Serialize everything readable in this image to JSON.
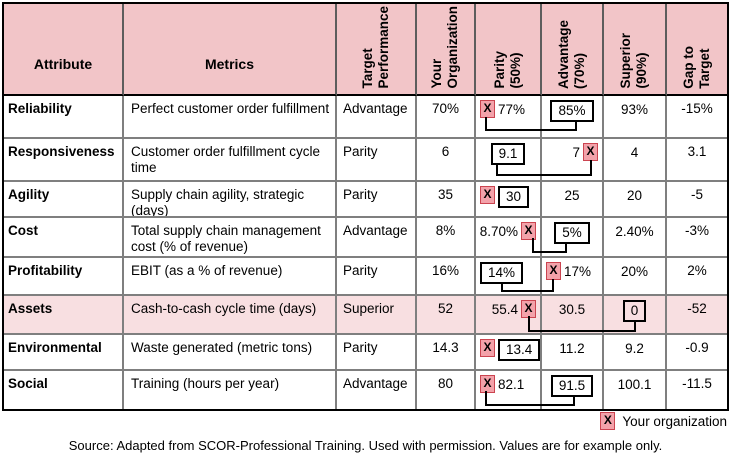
{
  "colors": {
    "header_bg": "#f2c5c8",
    "highlight_row_bg": "#f8dfe1",
    "marker_bg": "#f3a2aa",
    "marker_border": "#cb4450",
    "grid_line": "#7f7f7f",
    "box_border": "#000000"
  },
  "legend": {
    "marker_glyph": "X",
    "label": "Your organization"
  },
  "source": "Source: Adapted from SCOR-Professional Training. Used with permission. Values are for example only.",
  "table": {
    "columns": [
      {
        "label": "Attribute",
        "rotated": false
      },
      {
        "label": "Metrics",
        "rotated": false
      },
      {
        "label": "Target\nPerformance",
        "rotated": true
      },
      {
        "label": "Your\nOrganization",
        "rotated": true
      },
      {
        "label": "Parity\n(50%)",
        "rotated": true
      },
      {
        "label": "Advantage\n(70%)",
        "rotated": true
      },
      {
        "label": "Superior\n(90%)",
        "rotated": true
      },
      {
        "label": "Gap to\nTarget",
        "rotated": true
      }
    ],
    "rows": [
      {
        "attribute": "Reliability",
        "metric": "Perfect customer order fulfillment",
        "target": "Advantage",
        "your_org": "70%",
        "parity": {
          "text": "77%",
          "marker": "before",
          "align": "left"
        },
        "advantage": {
          "text": "85%",
          "boxed": true,
          "align": "center"
        },
        "superior": {
          "text": "93%"
        },
        "gap": "-15%",
        "highlight": false
      },
      {
        "attribute": "Responsiveness",
        "metric": "Customer order fulfillment cycle time",
        "target": "Parity",
        "your_org": "6",
        "parity": {
          "text": "9.1",
          "boxed": true,
          "align": "center"
        },
        "advantage": {
          "text": "7",
          "marker": "after",
          "align": "right"
        },
        "superior": {
          "text": "4"
        },
        "gap": "3.1",
        "highlight": false
      },
      {
        "attribute": "Agility",
        "metric": "Supply chain agility, strategic (days)",
        "target": "Parity",
        "your_org": "35",
        "parity": {
          "text": "30",
          "boxed": true,
          "marker": "before",
          "align": "left"
        },
        "advantage": {
          "text": "25"
        },
        "superior": {
          "text": "20"
        },
        "gap": "-5",
        "highlight": false
      },
      {
        "attribute": "Cost",
        "metric": "Total supply chain management cost (% of revenue)",
        "target": "Advantage",
        "your_org": "8%",
        "parity": {
          "text": "8.70%",
          "marker": "after",
          "align": "right"
        },
        "advantage": {
          "text": "5%",
          "boxed": true,
          "align": "center"
        },
        "superior": {
          "text": "2.40%"
        },
        "gap": "-3%",
        "highlight": false
      },
      {
        "attribute": "Profitability",
        "metric": "EBIT (as a % of revenue)",
        "target": "Parity",
        "your_org": "16%",
        "parity": {
          "text": "14%",
          "boxed": true,
          "align": "left"
        },
        "advantage": {
          "text": "17%",
          "marker": "before",
          "align": "left"
        },
        "superior": {
          "text": "20%"
        },
        "gap": "2%",
        "highlight": false
      },
      {
        "attribute": "Assets",
        "metric": "Cash-to-cash cycle time (days)",
        "target": "Superior",
        "your_org": "52",
        "parity": {
          "text": "55.4",
          "marker": "after",
          "align": "right"
        },
        "advantage": {
          "text": "30.5"
        },
        "superior": {
          "text": "0",
          "boxed": true,
          "align": "center"
        },
        "gap": "-52",
        "highlight": true
      },
      {
        "attribute": "Environmental",
        "metric": "Waste generated (metric tons)",
        "target": "Parity",
        "your_org": "14.3",
        "parity": {
          "text": "13.4",
          "boxed": true,
          "marker": "before",
          "align": "left"
        },
        "advantage": {
          "text": "11.2"
        },
        "superior": {
          "text": "9.2"
        },
        "gap": "-0.9",
        "highlight": false
      },
      {
        "attribute": "Social",
        "metric": "Training (hours per year)",
        "target": "Advantage",
        "your_org": "80",
        "parity": {
          "text": "82.1",
          "marker": "before",
          "align": "left"
        },
        "advantage": {
          "text": "91.5",
          "boxed": true,
          "align": "center"
        },
        "superior": {
          "text": "100.1"
        },
        "gap": "-11.5",
        "highlight": false
      }
    ]
  }
}
